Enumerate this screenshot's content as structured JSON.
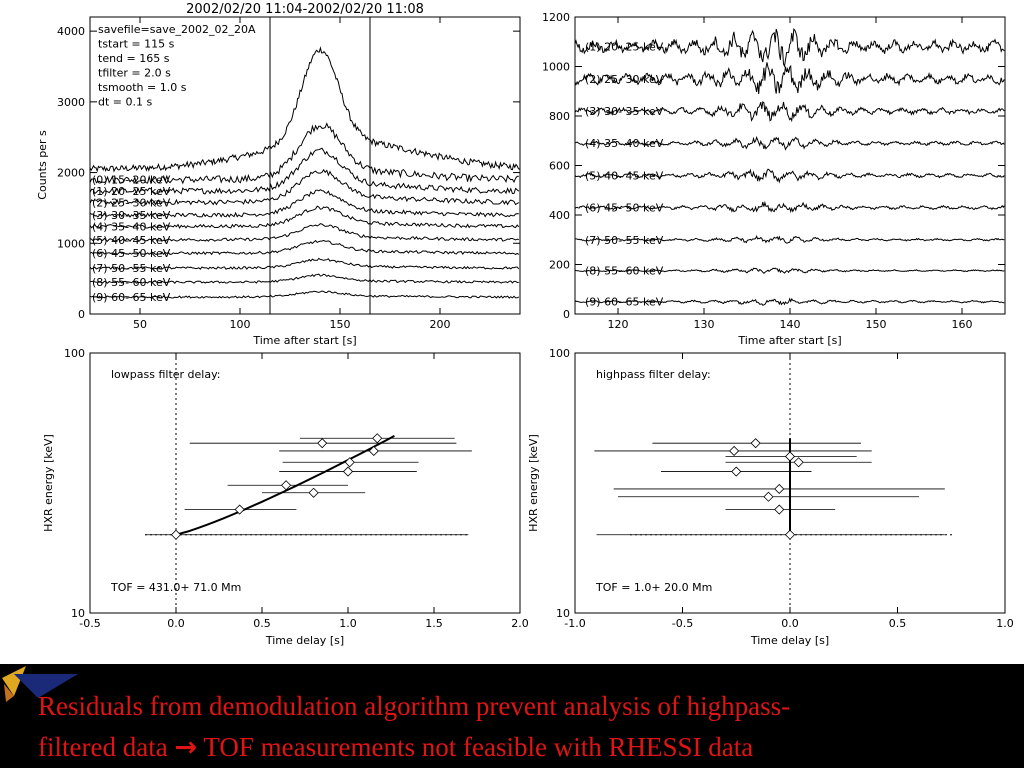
{
  "caption": {
    "line1": "Residuals from demodulation algorithm prevent analysis of highpass-",
    "line2_a": "filtered data ",
    "arrow": "→",
    "line2_b": " TOF measurements not feasible with RHESSI data",
    "color": "#e01414"
  },
  "chart_data": [
    {
      "id": "lightcurves",
      "type": "line",
      "title": "2002/02/20 11:04-2002/02/20 11:08",
      "xlabel": "Time after start [s]",
      "ylabel": "Counts per s",
      "xlim": [
        25,
        240
      ],
      "ylim": [
        0,
        4200
      ],
      "xticks": [
        "50",
        "100",
        "150",
        "200"
      ],
      "yticks": [
        "0",
        "1000",
        "2000",
        "3000",
        "4000"
      ],
      "info": [
        "savefile=save_2002_02_20A",
        "tstart  = 115 s",
        "tend    = 165 s",
        "tfilter = 2.0 s",
        "tsmooth = 1.0 s",
        "dt      = 0.1 s"
      ],
      "vertical_lines": [
        115,
        165
      ],
      "top_curve": {
        "base": 2050,
        "peak_time": 140,
        "peak": 3750
      },
      "series": [
        {
          "label": "(0)   15-  20 keV",
          "base": 1900,
          "peak": 700
        },
        {
          "label": "(1)   20-  25 keV",
          "base": 1740,
          "peak": 520
        },
        {
          "label": "(2)   25-  30 keV",
          "base": 1580,
          "peak": 400
        },
        {
          "label": "(3)   30-  35 keV",
          "base": 1400,
          "peak": 300
        },
        {
          "label": "(4)   35-  40 keV",
          "base": 1240,
          "peak": 240
        },
        {
          "label": "(5)   40-  45 keV",
          "base": 1050,
          "peak": 190
        },
        {
          "label": "(6)   45-  50 keV",
          "base": 860,
          "peak": 150
        },
        {
          "label": "(7)   50-  55 keV",
          "base": 650,
          "peak": 110
        },
        {
          "label": "(8)   55-  60 keV",
          "base": 450,
          "peak": 90
        },
        {
          "label": "(9)   60-  65 keV",
          "base": 240,
          "peak": 70
        }
      ]
    },
    {
      "id": "residuals",
      "type": "line",
      "xlabel": "Time after start [s]",
      "xlim": [
        115,
        165
      ],
      "ylim": [
        0,
        1200
      ],
      "xticks": [
        "120",
        "130",
        "140",
        "150",
        "160"
      ],
      "yticks": [
        "0",
        "200",
        "400",
        "600",
        "800",
        "1000",
        "1200"
      ],
      "series": [
        {
          "label": "(1)   20-  25 keV",
          "base": 1080,
          "amp": 45
        },
        {
          "label": "(2)   25-  30 keV",
          "base": 950,
          "amp": 38
        },
        {
          "label": "(3)   30-  35 keV",
          "base": 820,
          "amp": 22
        },
        {
          "label": "(4)   35-  40 keV",
          "base": 690,
          "amp": 14
        },
        {
          "label": "(5)   40-  45 keV",
          "base": 560,
          "amp": 14
        },
        {
          "label": "(6)   45-  50 keV",
          "base": 430,
          "amp": 12
        },
        {
          "label": "(7)   50-  55 keV",
          "base": 300,
          "amp": 8
        },
        {
          "label": "(8)   55-  60 keV",
          "base": 175,
          "amp": 6
        },
        {
          "label": "(9)   60-  65 keV",
          "base": 50,
          "amp": 8
        }
      ]
    },
    {
      "id": "lowpass",
      "type": "scatter",
      "title": "lowpass filter delay:",
      "annotation": "TOF =  431.0+ 71.0 Mm",
      "xlabel": "Time delay [s]",
      "ylabel": "HXR energy [keV]",
      "xlim": [
        -0.5,
        2.0
      ],
      "ylim": [
        10,
        100
      ],
      "yscale": "log",
      "xticks": [
        "-0.5",
        "0.0",
        "0.5",
        "1.0",
        "1.5",
        "2.0"
      ],
      "yticks": [
        "10",
        "100"
      ],
      "points": [
        {
          "x": 0.0,
          "y": 20,
          "xerr_low": -0.18,
          "xerr_high": 1.7
        },
        {
          "x": 0.37,
          "y": 25,
          "xerr_low": 0.05,
          "xerr_high": 0.7
        },
        {
          "x": 0.8,
          "y": 29,
          "xerr_low": 0.5,
          "xerr_high": 1.1
        },
        {
          "x": 0.64,
          "y": 31,
          "xerr_low": 0.3,
          "xerr_high": 1.0
        },
        {
          "x": 1.0,
          "y": 35,
          "xerr_low": 0.6,
          "xerr_high": 1.4
        },
        {
          "x": 1.01,
          "y": 38,
          "xerr_low": 0.62,
          "xerr_high": 1.41
        },
        {
          "x": 1.15,
          "y": 42,
          "xerr_low": 0.6,
          "xerr_high": 1.72
        },
        {
          "x": 0.85,
          "y": 45,
          "xerr_low": 0.08,
          "xerr_high": 1.63
        },
        {
          "x": 1.17,
          "y": 47,
          "xerr_low": 0.72,
          "xerr_high": 1.62
        }
      ],
      "fit": {
        "x0": 0.0,
        "y0": 20,
        "x1": 1.27,
        "y1": 48
      },
      "reference_lines": {
        "vertical_x": 0.0,
        "horizontal_y": 20
      }
    },
    {
      "id": "highpass",
      "type": "scatter",
      "title": "highpass filter delay:",
      "annotation": "TOF =    1.0+ 20.0 Mm",
      "xlabel": "Time delay [s]",
      "ylabel": "HXR energy [keV]",
      "xlim": [
        -1.0,
        1.0
      ],
      "ylim": [
        10,
        100
      ],
      "yscale": "log",
      "xticks": [
        "-1.0",
        "-0.5",
        "0.0",
        "0.5",
        "1.0"
      ],
      "yticks": [
        "10",
        "100"
      ],
      "points": [
        {
          "x": 0.0,
          "y": 20,
          "xerr_low": -0.9,
          "xerr_high": 0.72
        },
        {
          "x": -0.05,
          "y": 25,
          "xerr_low": -0.3,
          "xerr_high": 0.21
        },
        {
          "x": -0.1,
          "y": 28,
          "xerr_low": -0.8,
          "xerr_high": 0.6
        },
        {
          "x": -0.05,
          "y": 30,
          "xerr_low": -0.82,
          "xerr_high": 0.72
        },
        {
          "x": -0.25,
          "y": 35,
          "xerr_low": -0.6,
          "xerr_high": 0.1
        },
        {
          "x": 0.04,
          "y": 38,
          "xerr_low": -0.3,
          "xerr_high": 0.38
        },
        {
          "x": 0.0,
          "y": 40,
          "xerr_low": -0.3,
          "xerr_high": 0.31
        },
        {
          "x": -0.26,
          "y": 42,
          "xerr_low": -0.91,
          "xerr_high": 0.38
        },
        {
          "x": -0.16,
          "y": 45,
          "xerr_low": -0.64,
          "xerr_high": 0.33
        }
      ],
      "fit": {
        "x0": 0.0,
        "y0": 20,
        "x1": 0.0,
        "y1": 47
      },
      "reference_lines": {
        "vertical_x": 0.0,
        "horizontal_y": 20
      }
    }
  ]
}
